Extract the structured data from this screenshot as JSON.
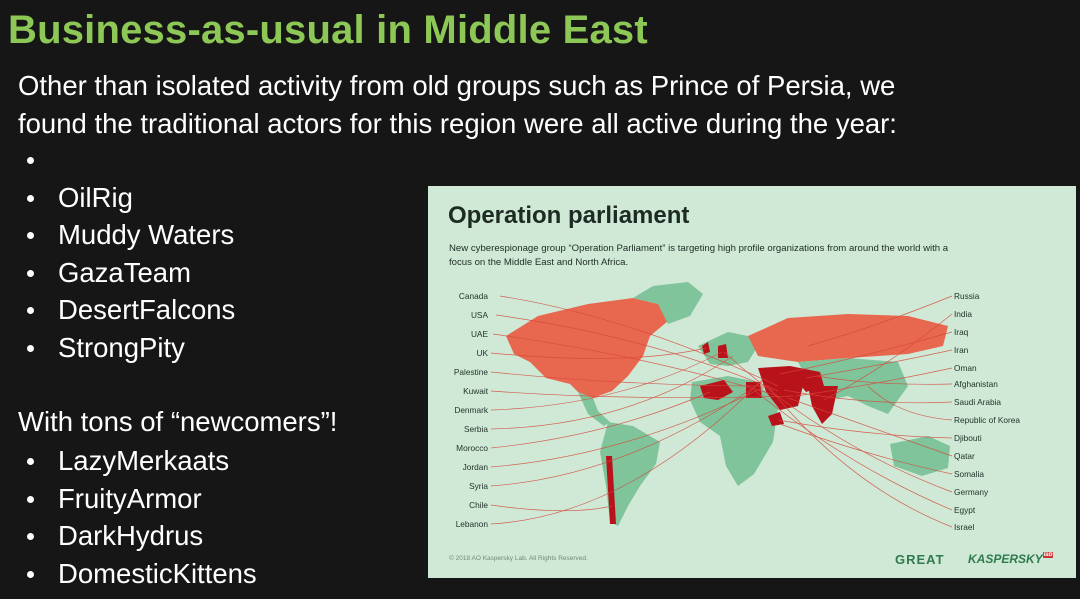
{
  "slide": {
    "title": "Business-as-usual in Middle East",
    "intro_line1": "Other than isolated activity from old groups such as Prince of Persia, we",
    "intro_line2": "found the traditional actors for this region were all active during the year:",
    "bullets_1": [
      "",
      "OilRig",
      "Muddy Waters",
      "GazaTeam",
      "DesertFalcons",
      "StrongPity"
    ],
    "subheading": "With tons of “newcomers”!",
    "bullets_2": [
      "LazyMerkaats",
      "FruityArmor",
      "DarkHydrus",
      "DomesticKittens"
    ]
  },
  "panel": {
    "title": "Operation parliament",
    "subtitle": "New cyberespionage group “Operation Parliament” is targeting high profile organizations from around the world with a focus on the Middle East and North Africa.",
    "left_countries": [
      "Canada",
      "USA",
      "UAE",
      "UK",
      "Palestine",
      "Kuwait",
      "Denmark",
      "Serbia",
      "Morocco",
      "Jordan",
      "Syria",
      "Chile",
      "Lebanon"
    ],
    "right_countries": [
      "Russia",
      "India",
      "Iraq",
      "Iran",
      "Oman",
      "Afghanistan",
      "Saudi Arabia",
      "Republic of Korea",
      "Djibouti",
      "Qatar",
      "Somalia",
      "Germany",
      "Egypt",
      "Israel"
    ],
    "copyright": "© 2018 AO Kaspersky Lab. All Rights Reserved.",
    "logo_great": "GREAT",
    "logo_kaspersky": "KASPERSKY",
    "logo_lab": "lab",
    "colors": {
      "land": "#7fc49a",
      "targeted": "#e8674f",
      "highlight": "#b8121b",
      "background": "#cfe9d6"
    }
  }
}
